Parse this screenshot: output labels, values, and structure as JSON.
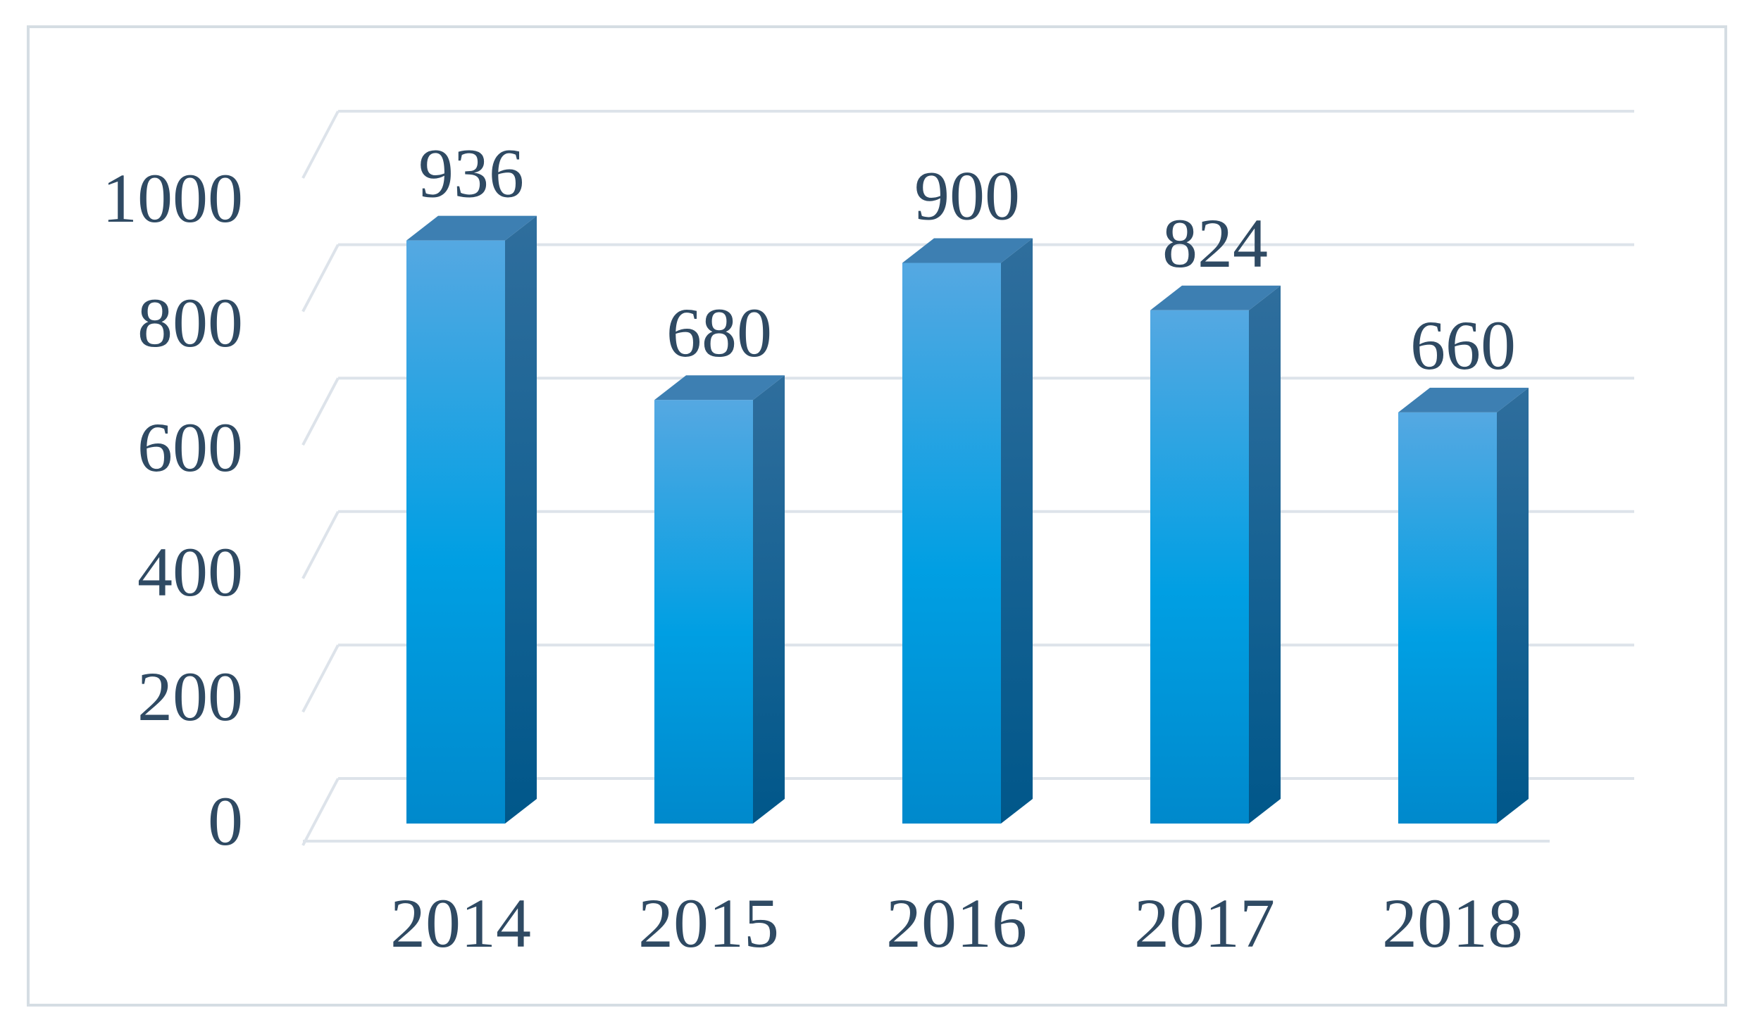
{
  "chart_data": {
    "type": "bar",
    "title": "",
    "xlabel": "",
    "ylabel": "",
    "categories": [
      "2014",
      "2015",
      "2016",
      "2017",
      "2018"
    ],
    "values": [
      936,
      680,
      900,
      824,
      660
    ],
    "value_labels": [
      "936",
      "680",
      "900",
      "824",
      "660"
    ],
    "ylim": [
      0,
      1000
    ],
    "yticks": [
      "0",
      "200",
      "400",
      "600",
      "800",
      "1000"
    ],
    "grid": true,
    "legend": "none",
    "style": "3d-column",
    "colors": {
      "bar_light": "#55a8e2",
      "bar_mid": "#009fe3",
      "bar_dark": "#0089cc",
      "bar_side": "#005d8c",
      "bar_top": "#3d7fb2",
      "grid": "#dde3ea",
      "text": "#2f4a63",
      "border": "#d5dde3"
    }
  }
}
